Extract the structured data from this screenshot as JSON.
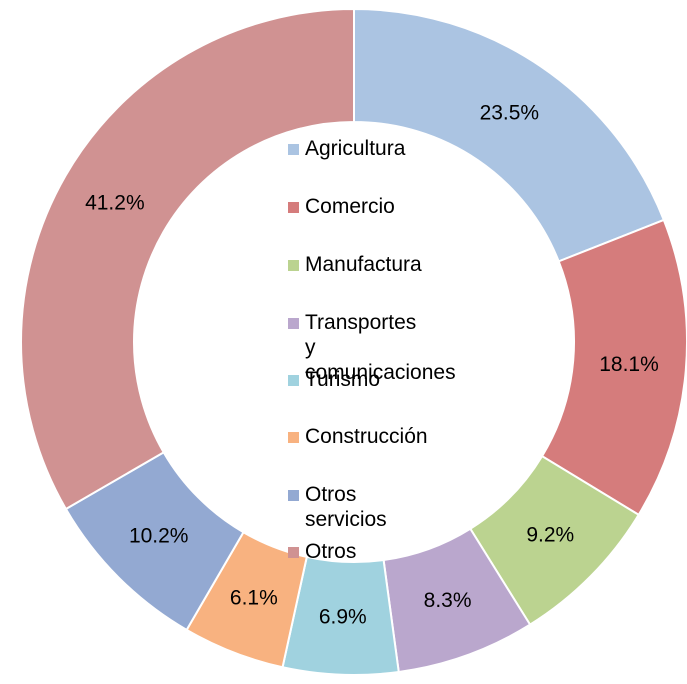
{
  "chart_data": {
    "type": "donut",
    "categories": [
      "Agricultura",
      "Comercio",
      "Manufactura",
      "Transportes\ny comunicaciones",
      "Turismo",
      "Construcción",
      "Otros servicios",
      "Otros"
    ],
    "values": [
      23.5,
      18.1,
      9.2,
      8.3,
      6.9,
      6.1,
      10.2,
      41.2
    ],
    "value_labels": [
      "23.5%",
      "18.1%",
      "9.2%",
      "8.3%",
      "6.9%",
      "6.1%",
      "10.2%",
      "41.2%"
    ],
    "colors": [
      "#abc4e2",
      "#d57c7c",
      "#bbd390",
      "#baa7cd",
      "#a0d2df",
      "#f8b280",
      "#93a9d2",
      "#d09292"
    ],
    "legend": "center"
  }
}
